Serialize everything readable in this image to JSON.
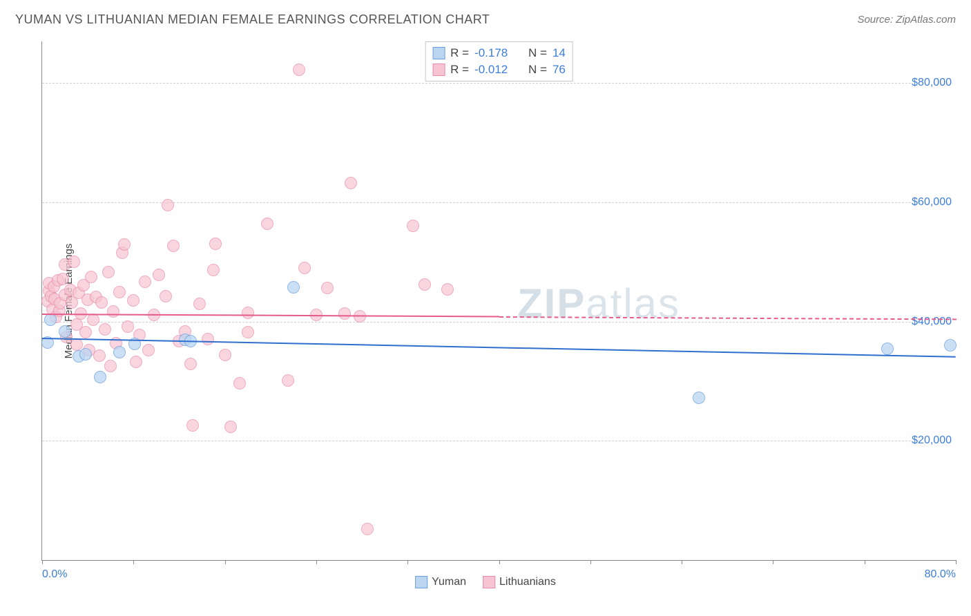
{
  "title": "YUMAN VS LITHUANIAN MEDIAN FEMALE EARNINGS CORRELATION CHART",
  "source": "Source: ZipAtlas.com",
  "watermark_a": "ZIP",
  "watermark_b": "atlas",
  "chart": {
    "type": "scatter",
    "background_color": "#ffffff",
    "grid_color": "#d0d0d0",
    "axis_color": "#888888",
    "xlim": [
      0,
      80
    ],
    "ylim": [
      0,
      87000
    ],
    "y_gridlines": [
      20000,
      40000,
      60000,
      80000
    ],
    "y_tick_labels": [
      "$20,000",
      "$40,000",
      "$60,000",
      "$80,000"
    ],
    "y_tick_color": "#3b7dd8",
    "x_minor_ticks": [
      0,
      8,
      16,
      24,
      32,
      40,
      48,
      56,
      64,
      72,
      80
    ],
    "x_axis_labels": [
      {
        "pos": 0,
        "text": "0.0%"
      },
      {
        "pos": 80,
        "text": "80.0%"
      }
    ],
    "y_axis_title": "Median Female Earnings",
    "y_axis_title_fontsize": 15,
    "point_radius": 9,
    "point_border_width": 1,
    "series": [
      {
        "name": "Yuman",
        "fill_color": "#bcd6f2",
        "stroke_color": "#6aa0de",
        "fill_opacity": 0.75,
        "R": "-0.178",
        "N": "14",
        "trend": {
          "y_start": 37300,
          "y_end": 34200,
          "x_solid_end": 80,
          "color": "#2f6fcf",
          "width": 2
        },
        "points": [
          [
            0.5,
            36500
          ],
          [
            0.7,
            40300
          ],
          [
            2.0,
            38300
          ],
          [
            3.2,
            34200
          ],
          [
            3.8,
            34500
          ],
          [
            5.1,
            30700
          ],
          [
            6.8,
            34900
          ],
          [
            8.1,
            36300
          ],
          [
            12.5,
            37000
          ],
          [
            13.0,
            36700
          ],
          [
            22.0,
            45800
          ],
          [
            57.5,
            27200
          ],
          [
            74.0,
            35500
          ],
          [
            79.5,
            36000
          ]
        ]
      },
      {
        "name": "Lithuanians",
        "fill_color": "#f6c4d2",
        "stroke_color": "#e78aa6",
        "fill_opacity": 0.7,
        "R": "-0.012",
        "N": "76",
        "trend": {
          "y_start": 41300,
          "y_end": 40500,
          "x_solid_end": 40,
          "color": "#e75a8c",
          "width": 2
        },
        "points": [
          [
            0.5,
            43500
          ],
          [
            0.6,
            45200
          ],
          [
            0.6,
            46400
          ],
          [
            0.8,
            44300
          ],
          [
            0.9,
            42100
          ],
          [
            1.0,
            45900
          ],
          [
            1.1,
            43800
          ],
          [
            1.2,
            40800
          ],
          [
            1.4,
            46900
          ],
          [
            1.5,
            41800
          ],
          [
            1.6,
            43100
          ],
          [
            1.8,
            47200
          ],
          [
            2.0,
            44500
          ],
          [
            2.0,
            49600
          ],
          [
            2.1,
            37400
          ],
          [
            2.5,
            45300
          ],
          [
            2.6,
            43200
          ],
          [
            2.8,
            50100
          ],
          [
            3.0,
            36100
          ],
          [
            3.0,
            39500
          ],
          [
            3.2,
            44800
          ],
          [
            3.4,
            41400
          ],
          [
            3.6,
            46100
          ],
          [
            3.8,
            38200
          ],
          [
            4.0,
            43700
          ],
          [
            4.1,
            35200
          ],
          [
            4.3,
            47500
          ],
          [
            4.5,
            40300
          ],
          [
            4.7,
            44100
          ],
          [
            5.0,
            34300
          ],
          [
            5.2,
            43200
          ],
          [
            5.5,
            38700
          ],
          [
            5.8,
            48300
          ],
          [
            6.0,
            32500
          ],
          [
            6.2,
            41700
          ],
          [
            6.5,
            36400
          ],
          [
            6.8,
            44900
          ],
          [
            7.0,
            51500
          ],
          [
            7.2,
            52900
          ],
          [
            7.5,
            39100
          ],
          [
            8.0,
            43600
          ],
          [
            8.2,
            33300
          ],
          [
            8.5,
            37800
          ],
          [
            9.0,
            46700
          ],
          [
            9.3,
            35200
          ],
          [
            9.8,
            41100
          ],
          [
            10.2,
            47800
          ],
          [
            10.8,
            44200
          ],
          [
            11.5,
            52700
          ],
          [
            11.0,
            59500
          ],
          [
            12.0,
            36700
          ],
          [
            12.5,
            38400
          ],
          [
            13.0,
            32900
          ],
          [
            13.2,
            22600
          ],
          [
            13.8,
            43000
          ],
          [
            14.5,
            37100
          ],
          [
            15.0,
            48600
          ],
          [
            15.2,
            53100
          ],
          [
            16.0,
            34400
          ],
          [
            16.5,
            22400
          ],
          [
            17.3,
            29600
          ],
          [
            18.0,
            41500
          ],
          [
            18.0,
            38200
          ],
          [
            19.7,
            56400
          ],
          [
            21.5,
            30100
          ],
          [
            22.5,
            82200
          ],
          [
            23.0,
            49000
          ],
          [
            24.0,
            41100
          ],
          [
            25.0,
            45600
          ],
          [
            26.5,
            41400
          ],
          [
            27.0,
            63300
          ],
          [
            27.8,
            40900
          ],
          [
            28.5,
            5200
          ],
          [
            32.5,
            56100
          ],
          [
            33.5,
            46200
          ],
          [
            35.5,
            45400
          ]
        ]
      }
    ],
    "bottom_legend": [
      {
        "label": "Yuman",
        "fill": "#bcd6f2",
        "stroke": "#6aa0de"
      },
      {
        "label": "Lithuanians",
        "fill": "#f6c4d2",
        "stroke": "#e78aa6"
      }
    ]
  }
}
